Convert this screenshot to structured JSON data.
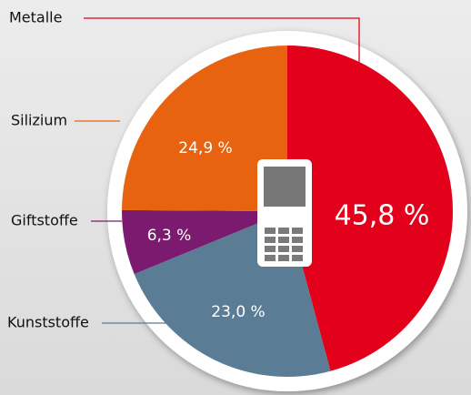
{
  "chart_data": {
    "type": "pie",
    "categories": [
      "Metalle",
      "Kunststoffe",
      "Giftstoffe",
      "Silizium"
    ],
    "values": [
      45.8,
      23.0,
      6.3,
      24.9
    ],
    "value_labels": [
      "45,8 %",
      "23,0 %",
      "6,3 %",
      "24,9 %"
    ],
    "colors": [
      "#e2001a",
      "#5b7c95",
      "#7b1a6f",
      "#e8630f"
    ]
  }
}
